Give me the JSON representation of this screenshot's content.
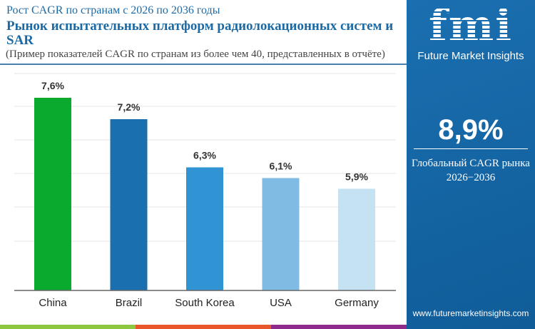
{
  "header": {
    "subtitle": "Рост CAGR по странам с 2026 по 2036 годы",
    "title": "Рынок испытательных платформ радиолокационных систем и SAR",
    "note": "(Пример показателей CAGR по странам из более чем 40, представленных в отчёте)"
  },
  "panel": {
    "brand": "fmi",
    "brand_name": "Future Market Insights",
    "global_cagr": "8,9%",
    "global_label": "Глобальный CAGR рынка",
    "period": "2026−2036",
    "url": "www.futuremarketinsights.com",
    "bg_color": "#1a6aa8"
  },
  "chart_data": {
    "type": "bar",
    "categories": [
      "China",
      "Brazil",
      "South Korea",
      "USA",
      "Germany"
    ],
    "values": [
      7.6,
      7.2,
      6.3,
      6.1,
      5.9
    ],
    "labels": [
      "7,6%",
      "7,2%",
      "6,3%",
      "6,1%",
      "5,9%"
    ],
    "colors": [
      "#0aaa2e",
      "#1a6fae",
      "#2f93d4",
      "#7fbbe2",
      "#c5e2f3"
    ],
    "unit": "%",
    "grid": true,
    "legend": "none"
  },
  "stripes": [
    "#8dc63f",
    "#e8572a",
    "#8e2a8a"
  ]
}
